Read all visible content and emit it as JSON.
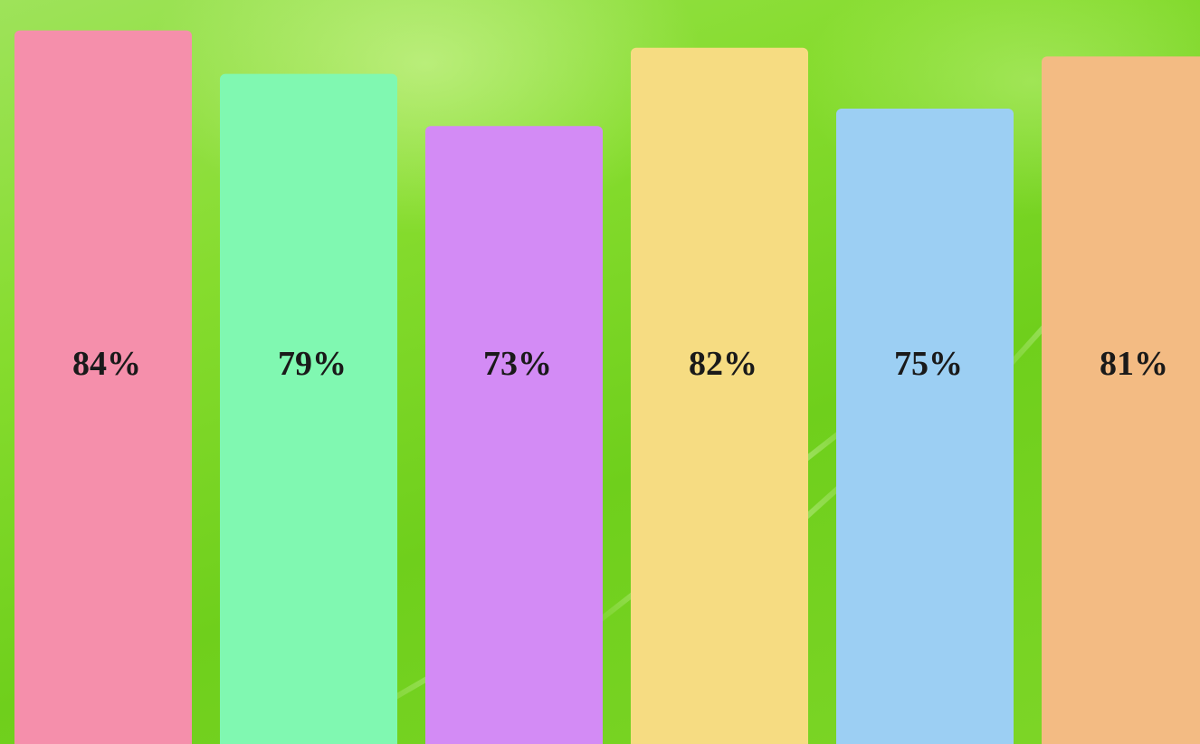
{
  "chart_data": {
    "type": "bar",
    "categories": [
      "",
      "",
      "",
      "",
      "",
      ""
    ],
    "values": [
      84,
      79,
      73,
      82,
      75,
      81
    ],
    "labels": [
      "84%",
      "79%",
      "73%",
      "82%",
      "75%",
      "81%"
    ],
    "colors": [
      "#f58fab",
      "#80f8b1",
      "#d38bf5",
      "#f6dc82",
      "#9ccff3",
      "#f3bb83"
    ],
    "title": "",
    "xlabel": "",
    "ylabel": "",
    "ylim": [
      0,
      87.5
    ],
    "grid": false,
    "legend": "none"
  }
}
